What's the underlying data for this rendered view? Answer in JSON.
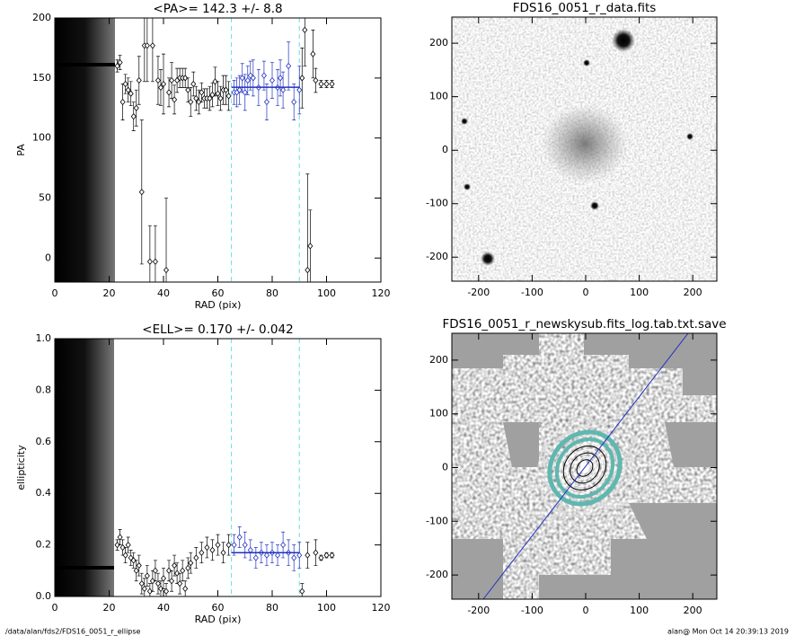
{
  "chart_data": [
    {
      "type": "scatter",
      "title": "<PA>= 142.3 +/-   8.8",
      "xlabel": "RAD (pix)",
      "ylabel": "PA",
      "xlim": [
        0,
        120
      ],
      "ylim": [
        -20,
        200
      ],
      "xticks": [
        0,
        20,
        40,
        60,
        80,
        100,
        120
      ],
      "yticks": [
        0,
        50,
        100,
        150,
        200
      ],
      "fit_range": [
        65,
        90
      ],
      "mean": 142.3,
      "mean_color": "#2030c0",
      "range_color": "#66dddd",
      "series": [
        {
          "name": "PA",
          "color": "#000000",
          "x": [
            23,
            24,
            25,
            26,
            27,
            28,
            29,
            30,
            31,
            32,
            33,
            34,
            35,
            36,
            37,
            38,
            39,
            40,
            41,
            42,
            43,
            44,
            45,
            46,
            47,
            48,
            49,
            50,
            51,
            52,
            53,
            54,
            55,
            56,
            57,
            58,
            59,
            60,
            61,
            62,
            63,
            64,
            66,
            67,
            68,
            69,
            70,
            71,
            72,
            73,
            75,
            77,
            78,
            80,
            82,
            83,
            84,
            86,
            88,
            90,
            91,
            92,
            93,
            94,
            95,
            96,
            98,
            100,
            102
          ],
          "values": [
            160,
            163,
            130,
            145,
            140,
            137,
            118,
            125,
            148,
            55,
            177,
            177,
            -3,
            177,
            -3,
            148,
            142,
            145,
            -10,
            138,
            148,
            132,
            148,
            150,
            150,
            150,
            140,
            130,
            145,
            133,
            130,
            138,
            133,
            133,
            133,
            136,
            147,
            137,
            133,
            140,
            140,
            135,
            138,
            138,
            140,
            150,
            138,
            148,
            152,
            150,
            142,
            152,
            130,
            148,
            142,
            150,
            140,
            160,
            130,
            140,
            150,
            190,
            -10,
            10,
            170,
            148,
            145,
            145,
            145
          ],
          "errors": [
            5,
            6,
            15,
            8,
            10,
            10,
            12,
            15,
            20,
            60,
            30,
            30,
            30,
            30,
            30,
            20,
            15,
            25,
            60,
            12,
            15,
            12,
            10,
            8,
            8,
            8,
            10,
            12,
            10,
            10,
            10,
            8,
            8,
            8,
            10,
            10,
            12,
            10,
            10,
            12,
            12,
            12,
            10,
            12,
            12,
            12,
            15,
            12,
            12,
            15,
            15,
            12,
            15,
            15,
            15,
            15,
            15,
            20,
            15,
            20,
            25,
            30,
            80,
            30,
            20,
            10,
            3,
            3,
            3
          ]
        }
      ]
    },
    {
      "type": "scatter",
      "title": "<ELL>= 0.170 +/-  0.042",
      "xlabel": "RAD (pix)",
      "ylabel": "ellipticity",
      "xlim": [
        0,
        120
      ],
      "ylim": [
        0,
        1
      ],
      "xticks": [
        0,
        20,
        40,
        60,
        80,
        100,
        120
      ],
      "yticks": [
        {
          "value": 0,
          "label": "0.0"
        },
        {
          "value": 0.2,
          "label": "0.2"
        },
        {
          "value": 0.4,
          "label": "0.4"
        },
        {
          "value": 0.6,
          "label": "0.6"
        },
        {
          "value": 0.8,
          "label": "0.8"
        },
        {
          "value": 1,
          "label": "1.0"
        }
      ],
      "fit_range": [
        65,
        90
      ],
      "mean": 0.17,
      "mean_color": "#2030c0",
      "range_color": "#66dddd",
      "series": [
        {
          "name": "ellipticity",
          "color": "#000000",
          "x": [
            23,
            24,
            25,
            26,
            27,
            28,
            29,
            30,
            31,
            32,
            33,
            34,
            35,
            36,
            37,
            38,
            39,
            40,
            41,
            42,
            43,
            44,
            45,
            46,
            47,
            48,
            49,
            50,
            52,
            54,
            56,
            58,
            60,
            62,
            64,
            66,
            68,
            70,
            72,
            74,
            76,
            78,
            80,
            82,
            84,
            86,
            88,
            90,
            91,
            93,
            96,
            98,
            100,
            102
          ],
          "values": [
            0.2,
            0.23,
            0.19,
            0.16,
            0.2,
            0.15,
            0.14,
            0.1,
            0.12,
            0.05,
            0.03,
            0.08,
            0.02,
            0.06,
            0.1,
            0.05,
            0.03,
            0.07,
            0.02,
            0.1,
            0.06,
            0.12,
            0.09,
            0.05,
            0.1,
            0.03,
            0.11,
            0.13,
            0.15,
            0.17,
            0.19,
            0.18,
            0.2,
            0.17,
            0.2,
            0.2,
            0.23,
            0.2,
            0.18,
            0.15,
            0.17,
            0.16,
            0.17,
            0.16,
            0.2,
            0.17,
            0.15,
            0.16,
            0.02,
            0.16,
            0.17,
            0.15,
            0.16,
            0.16
          ],
          "errors": [
            0.02,
            0.03,
            0.03,
            0.03,
            0.03,
            0.03,
            0.03,
            0.04,
            0.04,
            0.04,
            0.04,
            0.04,
            0.03,
            0.04,
            0.04,
            0.04,
            0.03,
            0.04,
            0.03,
            0.04,
            0.04,
            0.04,
            0.04,
            0.04,
            0.04,
            0.03,
            0.04,
            0.04,
            0.04,
            0.04,
            0.04,
            0.04,
            0.04,
            0.04,
            0.04,
            0.04,
            0.04,
            0.05,
            0.04,
            0.04,
            0.04,
            0.04,
            0.04,
            0.04,
            0.05,
            0.05,
            0.05,
            0.05,
            0.03,
            0.05,
            0.05,
            0.01,
            0.01,
            0.01
          ]
        }
      ]
    },
    {
      "type": "image",
      "title": "FDS16_0051_r_data.fits",
      "xlim": [
        -250,
        245
      ],
      "ylim": [
        -245,
        249
      ],
      "xticks": [
        -200,
        -100,
        0,
        100,
        200
      ],
      "yticks": [
        -200,
        -100,
        0,
        100,
        200
      ]
    },
    {
      "type": "image",
      "title": "FDS16_0051_r_newskysub.fits_log.tab.txt.save",
      "xlim": [
        -250,
        245
      ],
      "ylim": [
        -245,
        250
      ],
      "xticks": [
        -200,
        -100,
        0,
        100,
        200
      ],
      "yticks": [
        -200,
        -100,
        0,
        100,
        200
      ]
    }
  ],
  "footer": {
    "path": "/data/alan/fds2/FDS16_0051_r_ellipse",
    "stamp": "alan@  Mon Oct 14 20:39:13 2019"
  }
}
